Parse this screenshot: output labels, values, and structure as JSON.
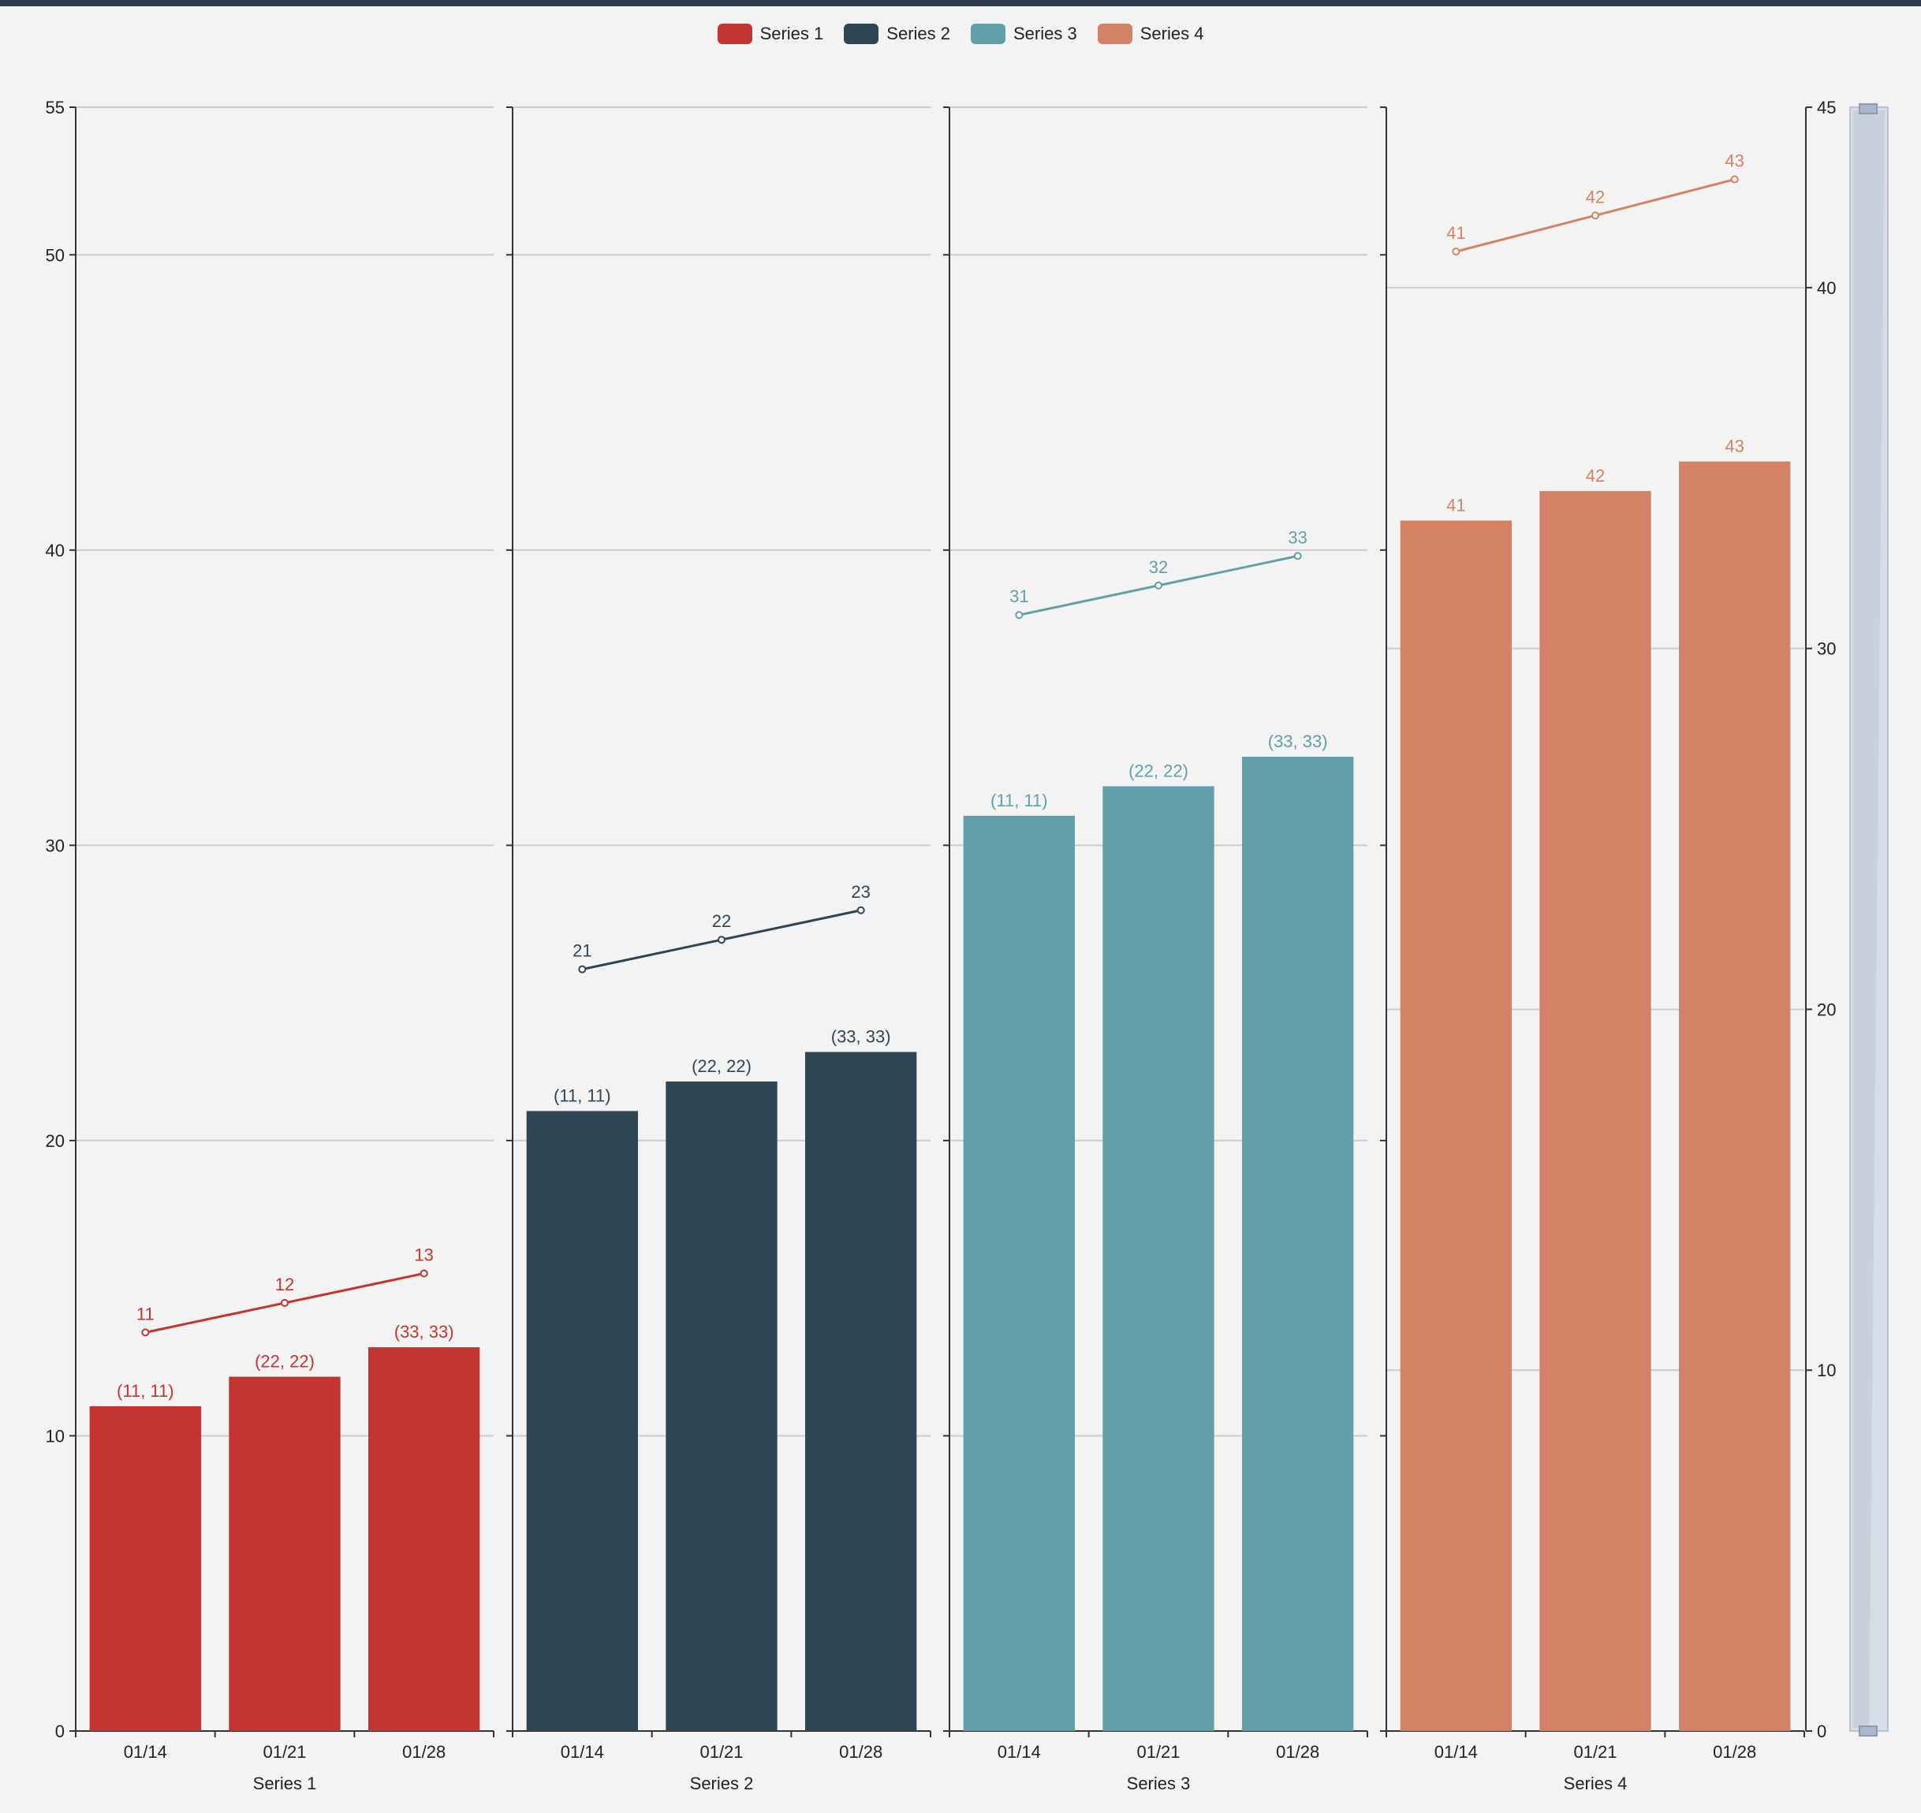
{
  "legend": [
    {
      "name": "Series 1",
      "color": "#c23531"
    },
    {
      "name": "Series 2",
      "color": "#2f4554"
    },
    {
      "name": "Series 3",
      "color": "#61a0a8"
    },
    {
      "name": "Series 4",
      "color": "#d48265"
    }
  ],
  "chart_data": {
    "type": "bar",
    "categories": [
      "01/14",
      "01/21",
      "01/28"
    ],
    "left_axis": {
      "min": 0,
      "max": 55,
      "ticks": [
        0,
        10,
        20,
        30,
        40,
        50,
        55
      ]
    },
    "right_axis": {
      "min": 0,
      "max": 45,
      "ticks": [
        0,
        10,
        20,
        30,
        40,
        45
      ]
    },
    "panels": [
      {
        "name": "Series 1",
        "color": "#c23531",
        "bar_values": [
          11,
          12,
          13
        ],
        "bar_labels": [
          "(11, 11)",
          "(22, 22)",
          "(33, 33)"
        ],
        "line_values": [
          11,
          12,
          13
        ],
        "line_labels": [
          "11",
          "12",
          "13"
        ],
        "line_axis": "left",
        "line_offset": 2.5
      },
      {
        "name": "Series 2",
        "color": "#2f4554",
        "bar_values": [
          21,
          22,
          23
        ],
        "bar_labels": [
          "(11, 11)",
          "(22, 22)",
          "(33, 33)"
        ],
        "line_values": [
          21,
          22,
          23
        ],
        "line_labels": [
          "21",
          "22",
          "23"
        ],
        "line_axis": "left",
        "line_offset": 4.8
      },
      {
        "name": "Series 3",
        "color": "#61a0a8",
        "bar_values": [
          31,
          32,
          33
        ],
        "bar_labels": [
          "(11, 11)",
          "(22, 22)",
          "(33, 33)"
        ],
        "line_values": [
          31,
          32,
          33
        ],
        "line_labels": [
          "31",
          "32",
          "33"
        ],
        "line_axis": "left",
        "line_offset": 6.8
      },
      {
        "name": "Series 4",
        "color": "#d48265",
        "bar_values": [
          41,
          42,
          43
        ],
        "bar_labels": [
          "41",
          "42",
          "43"
        ],
        "line_values": [
          41,
          42,
          43
        ],
        "line_labels": [
          "41",
          "42",
          "43"
        ],
        "line_axis": "right",
        "line_offset": 0
      }
    ]
  }
}
